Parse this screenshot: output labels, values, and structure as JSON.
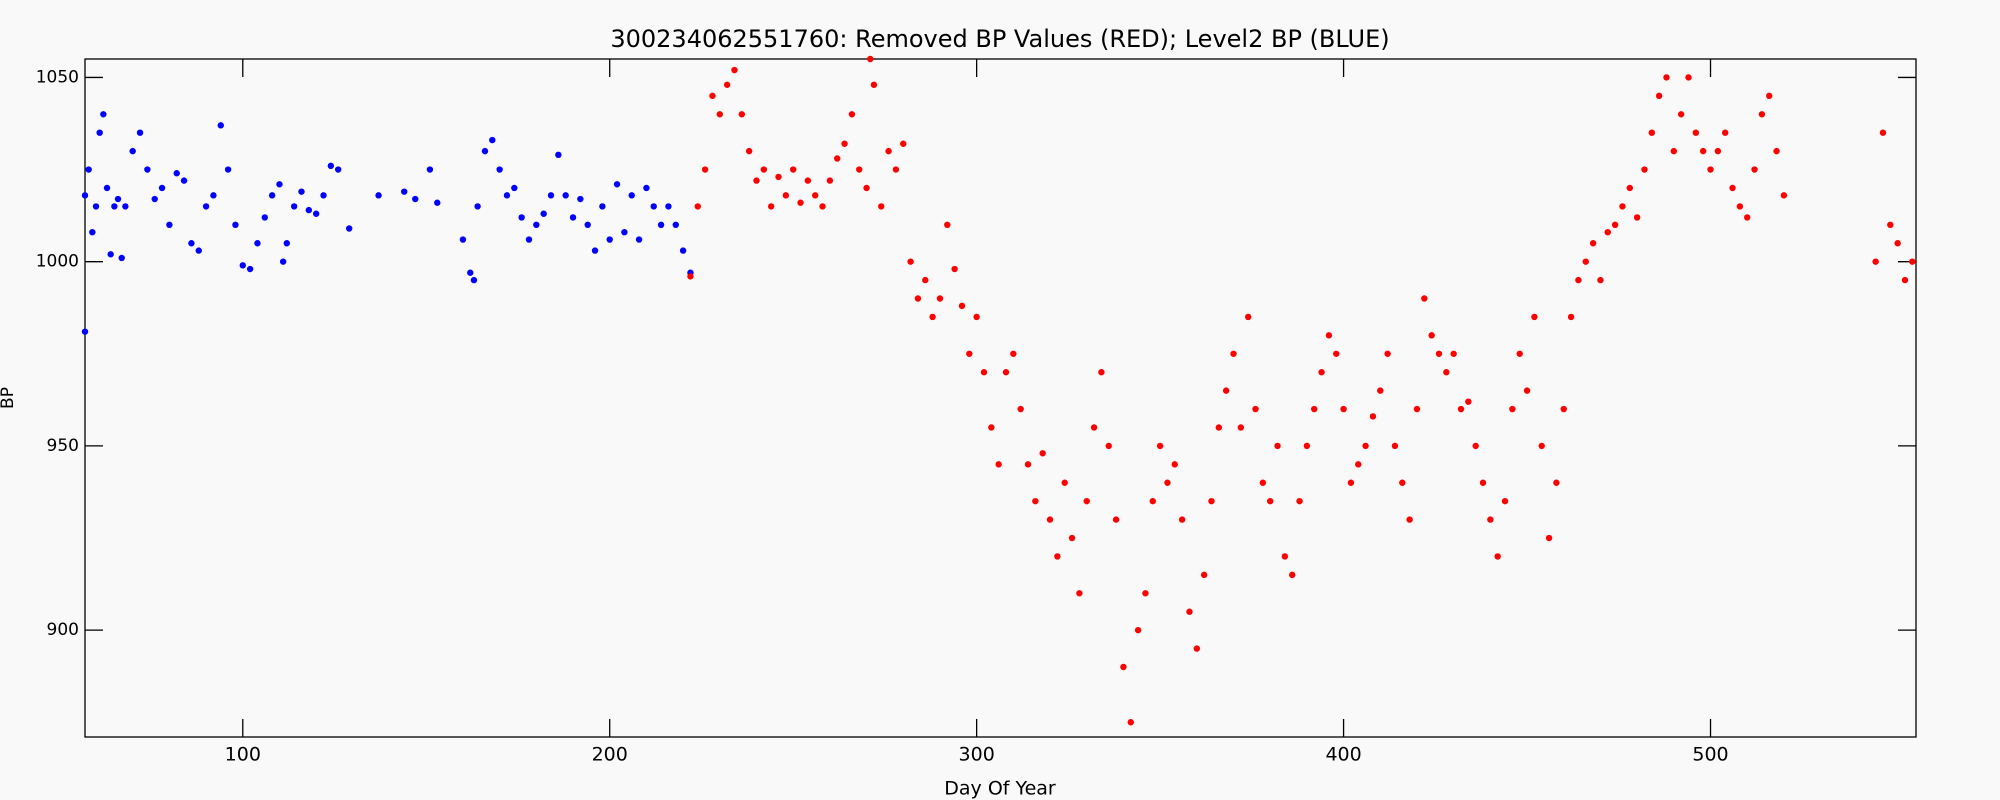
{
  "chart_data": {
    "type": "scatter",
    "title": "300234062551760: Removed BP Values (RED); Level2 BP (BLUE)",
    "x_label": "Day Of Year",
    "y_label": "BP",
    "xlim": [
      57,
      556
    ],
    "ylim": [
      871,
      1055
    ],
    "xticks": [
      100,
      200,
      300,
      400,
      500
    ],
    "yticks": [
      900,
      950,
      1000,
      1050
    ],
    "series": [
      {
        "color": "#0000ff",
        "x": [
          57,
          57,
          58,
          59,
          60,
          61,
          62,
          63,
          64,
          65,
          66,
          67,
          68,
          70,
          72,
          74,
          76,
          78,
          80,
          82,
          84,
          86,
          88,
          90,
          92,
          94,
          96,
          98,
          100,
          102,
          104,
          106,
          108,
          110,
          111,
          112,
          114,
          116,
          118,
          120,
          122,
          124,
          126,
          129,
          137,
          144,
          147,
          151,
          153,
          160,
          162,
          163,
          164,
          166,
          168,
          170,
          172,
          174,
          176,
          178,
          180,
          182,
          184,
          186,
          188,
          190,
          192,
          194,
          196,
          198,
          200,
          202,
          204,
          206,
          208,
          210,
          212,
          214,
          216,
          218,
          220,
          222
        ],
        "values": [
          981,
          1018,
          1025,
          1008,
          1015,
          1035,
          1040,
          1020,
          1002,
          1015,
          1017,
          1001,
          1015,
          1030,
          1035,
          1025,
          1017,
          1020,
          1010,
          1024,
          1022,
          1005,
          1003,
          1015,
          1018,
          1037,
          1025,
          1010,
          999,
          998,
          1005,
          1012,
          1018,
          1021,
          1000,
          1005,
          1015,
          1019,
          1014,
          1013,
          1018,
          1026,
          1025,
          1009,
          1018,
          1019,
          1017,
          1025,
          1016,
          1006,
          997,
          995,
          1015,
          1030,
          1033,
          1025,
          1018,
          1020,
          1012,
          1006,
          1010,
          1013,
          1018,
          1029,
          1018,
          1012,
          1017,
          1010,
          1003,
          1015,
          1006,
          1021,
          1008,
          1018,
          1006,
          1020,
          1015,
          1010,
          1015,
          1010,
          1003,
          997
        ]
      },
      {
        "color": "#ff0000",
        "x": [
          222,
          224,
          226,
          228,
          230,
          232,
          234,
          236,
          238,
          240,
          242,
          244,
          246,
          248,
          250,
          252,
          254,
          256,
          258,
          260,
          262,
          264,
          266,
          268,
          270,
          271,
          272,
          274,
          276,
          278,
          280,
          282,
          284,
          286,
          288,
          290,
          292,
          294,
          296,
          298,
          300,
          302,
          304,
          306,
          308,
          310,
          312,
          314,
          316,
          318,
          320,
          322,
          324,
          326,
          328,
          330,
          332,
          334,
          336,
          338,
          340,
          342,
          344,
          346,
          348,
          350,
          352,
          354,
          356,
          358,
          360,
          362,
          364,
          366,
          368,
          370,
          372,
          374,
          376,
          378,
          380,
          382,
          384,
          386,
          388,
          390,
          392,
          394,
          396,
          398,
          400,
          402,
          404,
          406,
          408,
          410,
          412,
          414,
          416,
          418,
          420,
          422,
          424,
          426,
          428,
          430,
          432,
          434,
          436,
          438,
          440,
          442,
          444,
          446,
          448,
          450,
          452,
          454,
          456,
          458,
          460,
          462,
          464,
          466,
          468,
          470,
          472,
          474,
          476,
          478,
          480,
          482,
          484,
          486,
          488,
          490,
          492,
          494,
          496,
          498,
          500,
          502,
          504,
          506,
          508,
          510,
          512,
          514,
          516,
          518,
          520,
          545,
          547,
          549,
          551,
          553,
          555
        ],
        "values": [
          996,
          1015,
          1025,
          1045,
          1040,
          1048,
          1052,
          1040,
          1030,
          1022,
          1025,
          1015,
          1023,
          1018,
          1025,
          1016,
          1022,
          1018,
          1015,
          1022,
          1028,
          1032,
          1040,
          1025,
          1020,
          1055,
          1048,
          1015,
          1030,
          1025,
          1032,
          1000,
          990,
          995,
          985,
          990,
          1010,
          998,
          988,
          975,
          985,
          970,
          955,
          945,
          970,
          975,
          960,
          945,
          935,
          948,
          930,
          920,
          940,
          925,
          910,
          935,
          955,
          970,
          950,
          930,
          890,
          875,
          900,
          910,
          935,
          950,
          940,
          945,
          930,
          905,
          895,
          915,
          935,
          955,
          965,
          975,
          955,
          985,
          960,
          940,
          935,
          950,
          920,
          915,
          935,
          950,
          960,
          970,
          980,
          975,
          960,
          940,
          945,
          950,
          958,
          965,
          975,
          950,
          940,
          930,
          960,
          990,
          980,
          975,
          970,
          975,
          960,
          962,
          950,
          940,
          930,
          920,
          935,
          960,
          975,
          965,
          985,
          950,
          925,
          940,
          960,
          985,
          995,
          1000,
          1005,
          995,
          1008,
          1010,
          1015,
          1020,
          1012,
          1025,
          1035,
          1045,
          1050,
          1030,
          1040,
          1050,
          1035,
          1030,
          1025,
          1030,
          1035,
          1020,
          1015,
          1012,
          1025,
          1040,
          1045,
          1030,
          1018,
          1000,
          1035,
          1010,
          1005,
          995,
          1000
        ]
      }
    ]
  }
}
